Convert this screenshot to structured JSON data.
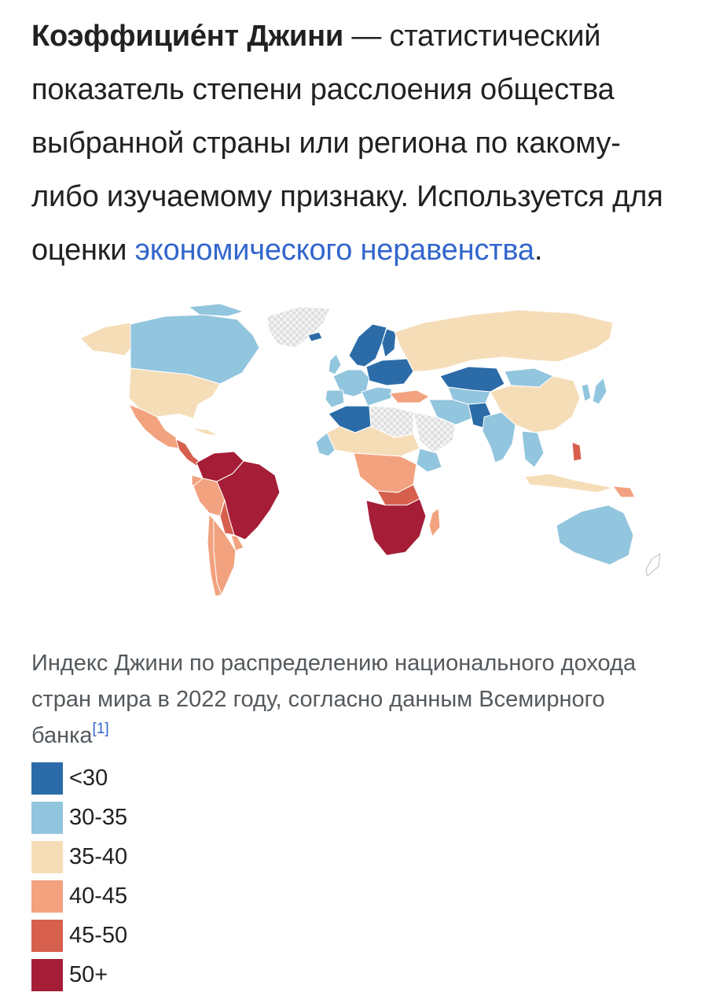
{
  "intro": {
    "term": "Коэффицие́нт Джини",
    "text_before_link": " — статистический показатель степени расслоения общества выбранной страны или региона по какому-либо изучаемому признаку. Используется для оценки ",
    "link_text": "экономического неравенства",
    "text_after_link": "."
  },
  "caption": {
    "text": "Индекс Джини по распределению национального дохода стран мира в 2022 году, согласно данным Всемирного банка",
    "footnote": "[1]"
  },
  "colors": {
    "lt30": "#2b6ca8",
    "c30_35": "#92c5de",
    "c35_40": "#f5ddb8",
    "c40_45": "#f2a27f",
    "c45_50": "#d6604d",
    "c50plus": "#a51d36",
    "nodata": "#dcdcdc",
    "border": "#ffffff"
  },
  "legend": [
    {
      "label": "<30",
      "color": "#2b6ca8"
    },
    {
      "label": "30-35",
      "color": "#92c5de"
    },
    {
      "label": "35-40",
      "color": "#f5ddb8"
    },
    {
      "label": "40-45",
      "color": "#f2a27f"
    },
    {
      "label": "45-50",
      "color": "#d6604d"
    },
    {
      "label": "50+",
      "color": "#a51d36"
    }
  ]
}
